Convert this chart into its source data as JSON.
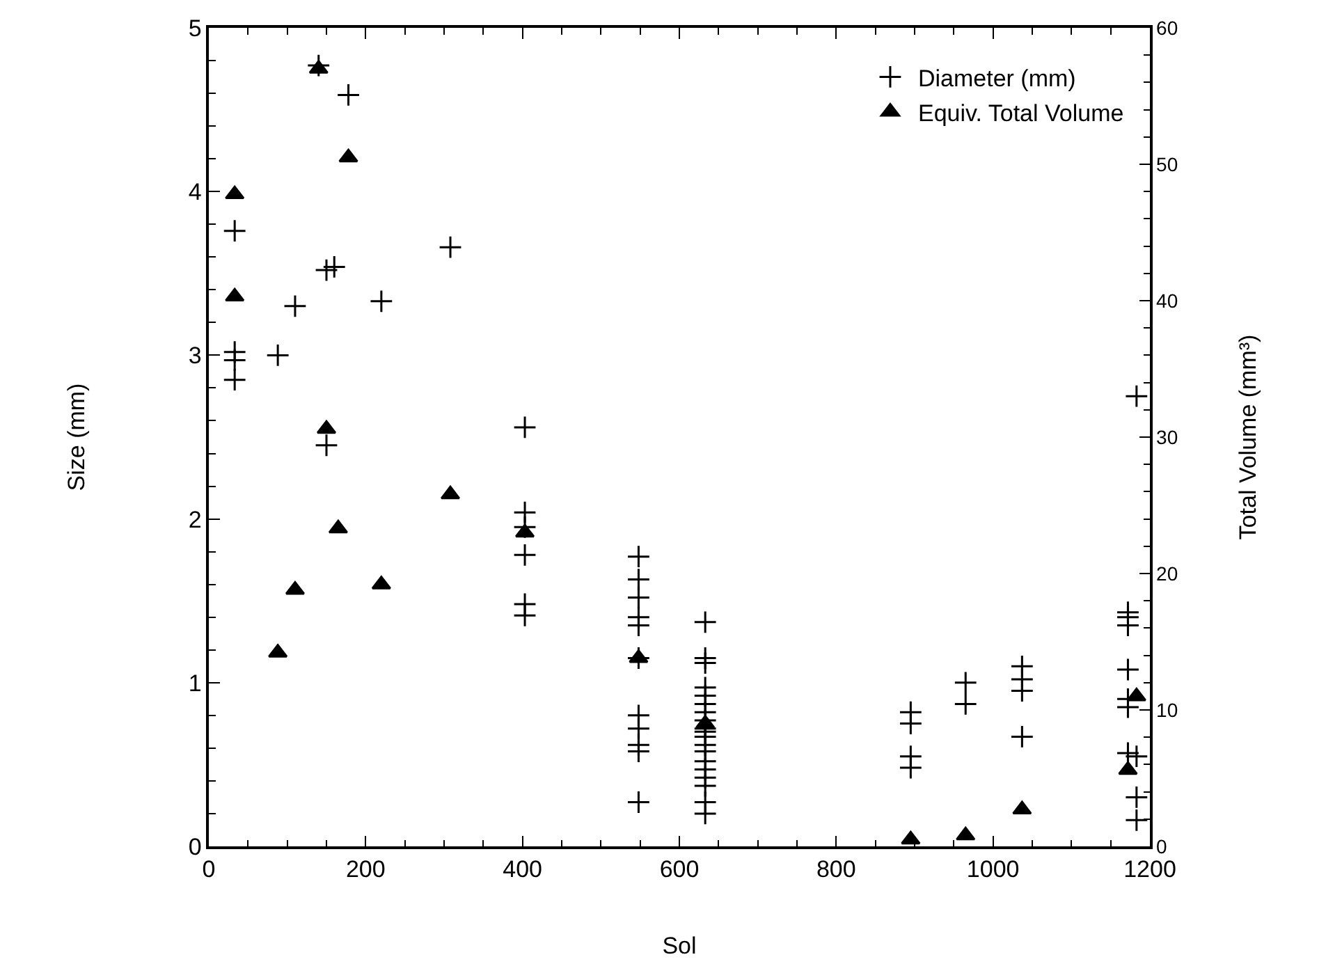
{
  "chart_data": {
    "type": "scatter",
    "xlabel": "Sol",
    "ylabel": "Size (mm)",
    "y2label": "Total Volume (mm³)",
    "xlim": [
      0,
      1200
    ],
    "xticks": [
      0,
      200,
      400,
      600,
      800,
      1000,
      1200
    ],
    "ylim": [
      0,
      5
    ],
    "yticks": [
      0,
      1,
      2,
      3,
      4,
      5
    ],
    "y2lim": [
      0,
      60
    ],
    "y2ticks": [
      0,
      10,
      20,
      30,
      40,
      50,
      60
    ],
    "legend": "top right",
    "series": [
      {
        "name": "Diameter (mm)",
        "color": "#000000",
        "marker": "cross",
        "x": [
          33,
          33,
          33,
          33,
          88,
          110,
          140,
          150,
          150,
          160,
          178,
          220,
          308,
          403,
          403,
          403,
          403,
          403,
          403,
          548,
          548,
          548,
          548,
          548,
          548,
          548,
          548,
          548,
          548,
          548,
          633,
          633,
          633,
          633,
          633,
          633,
          633,
          633,
          633,
          633,
          633,
          633,
          633,
          633,
          633,
          633,
          633,
          633,
          633,
          895,
          895,
          895,
          895,
          965,
          965,
          1037,
          1037,
          1037,
          1037,
          1172,
          1172,
          1172,
          1172,
          1172,
          1172,
          1172,
          1183,
          1183,
          1183,
          1183
        ],
        "values": [
          3.76,
          3.02,
          2.97,
          2.85,
          3.0,
          3.3,
          4.77,
          3.52,
          2.45,
          3.54,
          4.59,
          3.33,
          3.66,
          2.56,
          2.04,
          1.95,
          1.78,
          1.48,
          1.41,
          1.77,
          1.63,
          1.52,
          1.4,
          1.35,
          1.15,
          0.8,
          0.72,
          0.62,
          0.58,
          0.27,
          1.37,
          1.15,
          1.12,
          0.97,
          0.92,
          0.87,
          0.82,
          0.77,
          0.72,
          0.7,
          0.67,
          0.62,
          0.58,
          0.52,
          0.47,
          0.42,
          0.37,
          0.27,
          0.2,
          0.82,
          0.75,
          0.55,
          0.48,
          1.0,
          0.87,
          1.1,
          1.02,
          0.95,
          0.67,
          1.43,
          1.4,
          1.35,
          1.08,
          0.9,
          0.85,
          0.57,
          2.75,
          0.55,
          0.3,
          0.16
        ]
      },
      {
        "name": "Equiv. Total Volume",
        "color": "#000000",
        "marker": "triangle",
        "axis": "y2",
        "x": [
          33,
          33,
          88,
          110,
          140,
          150,
          165,
          178,
          220,
          308,
          403,
          548,
          633,
          895,
          965,
          1037,
          1172,
          1183
        ],
        "values": [
          47.8,
          40.3,
          14.2,
          18.8,
          57,
          30.6,
          23.3,
          50.5,
          19.2,
          25.8,
          23,
          13.8,
          9,
          0.5,
          0.8,
          2.7,
          5.6,
          11
        ]
      }
    ]
  }
}
